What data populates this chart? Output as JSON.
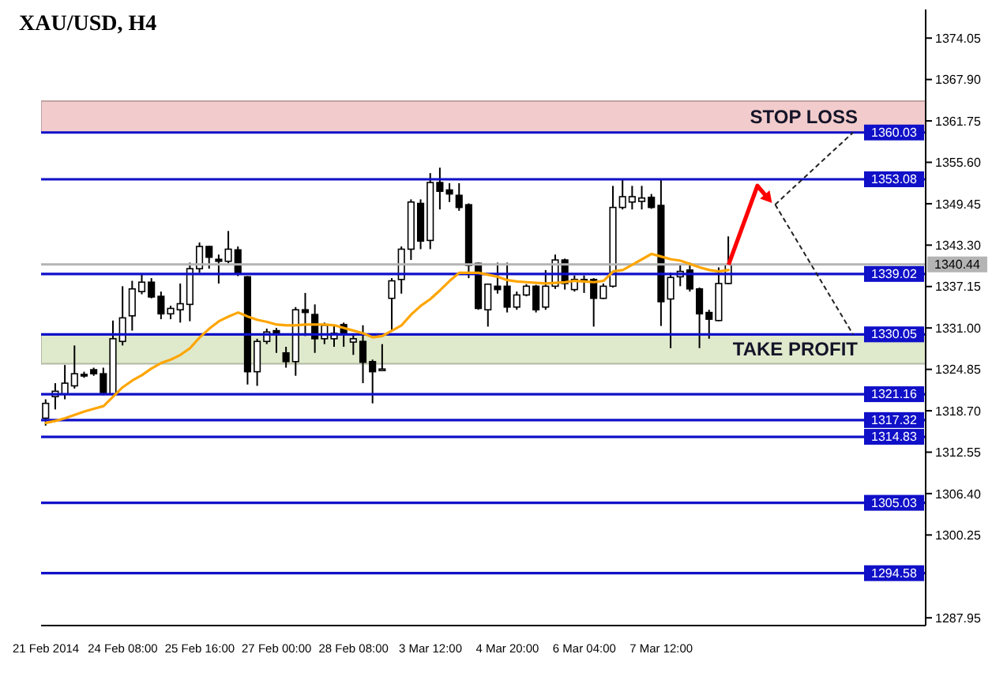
{
  "chart_data": {
    "type": "candlestick",
    "title": "XAU/USD, H4",
    "categories": [
      "21 Feb 2014",
      null,
      null,
      null,
      null,
      null,
      null,
      null,
      "24 Feb 08:00",
      null,
      null,
      null,
      null,
      null,
      null,
      null,
      "25 Feb 16:00",
      null,
      null,
      null,
      null,
      null,
      null,
      null,
      "27 Feb 00:00",
      null,
      null,
      null,
      null,
      null,
      null,
      null,
      "28 Feb 08:00",
      null,
      null,
      null,
      null,
      null,
      null,
      null,
      "3 Mar 12:00",
      null,
      null,
      null,
      null,
      null,
      null,
      null,
      "4 Mar 20:00",
      null,
      null,
      null,
      null,
      null,
      null,
      null,
      "6 Mar 04:00",
      null,
      null,
      null,
      null,
      null,
      null,
      null,
      "7 Mar 12:00",
      null,
      null,
      null,
      null,
      null,
      null,
      null,
      null,
      null,
      null,
      null,
      null,
      null,
      null,
      null,
      null,
      null,
      null,
      null,
      null,
      null,
      null,
      null,
      null,
      null,
      null,
      null
    ],
    "ohlc": [
      [
        1317.6,
        1320.4,
        1316.5,
        1319.8
      ],
      [
        1320.8,
        1322.8,
        1318.9,
        1321.6
      ],
      [
        1321.2,
        1325.5,
        1320.4,
        1322.8
      ],
      [
        1322.4,
        1328.4,
        1322.0,
        1324.2
      ],
      [
        1324.1,
        1324.5,
        1323.6,
        1323.9
      ],
      [
        1324.8,
        1325.1,
        1323.9,
        1324.2
      ],
      [
        1324.2,
        1325.1,
        1321.0,
        1321.4
      ],
      [
        1321.2,
        1332.1,
        1321.0,
        1329.4
      ],
      [
        1329.0,
        1337.2,
        1328.4,
        1332.5
      ],
      [
        1332.8,
        1338.0,
        1330.6,
        1336.8
      ],
      [
        1336.4,
        1339.0,
        1336.0,
        1337.8
      ],
      [
        1337.8,
        1338.4,
        1335.4,
        1335.6
      ],
      [
        1335.7,
        1336.4,
        1332.3,
        1333.1
      ],
      [
        1333.1,
        1334.3,
        1332.3,
        1333.9
      ],
      [
        1333.7,
        1337.6,
        1331.8,
        1334.6
      ],
      [
        1334.5,
        1340.7,
        1332.0,
        1339.8
      ],
      [
        1339.8,
        1343.7,
        1339.2,
        1343.1
      ],
      [
        1343.1,
        1343.2,
        1339.8,
        1341.5
      ],
      [
        1341.2,
        1341.9,
        1337.6,
        1340.9
      ],
      [
        1340.9,
        1345.4,
        1340.6,
        1342.7
      ],
      [
        1342.6,
        1343.1,
        1338.7,
        1339.2
      ],
      [
        1338.6,
        1338.7,
        1322.6,
        1324.5
      ],
      [
        1324.5,
        1329.4,
        1322.4,
        1329.0
      ],
      [
        1329.0,
        1330.9,
        1328.6,
        1330.4
      ],
      [
        1330.6,
        1331.0,
        1327.3,
        1330.1
      ],
      [
        1327.3,
        1328.2,
        1325.1,
        1326.0
      ],
      [
        1326.0,
        1334.1,
        1323.9,
        1333.7
      ],
      [
        1333.7,
        1336.2,
        1329.8,
        1333.3
      ],
      [
        1333.0,
        1334.5,
        1327.3,
        1329.4
      ],
      [
        1329.4,
        1331.8,
        1328.6,
        1331.4
      ],
      [
        1329.4,
        1331.4,
        1328.2,
        1330.2
      ],
      [
        1331.5,
        1331.8,
        1328.2,
        1330.2
      ],
      [
        1328.9,
        1330.2,
        1327.0,
        1329.4
      ],
      [
        1329.0,
        1331.4,
        1322.8,
        1325.9
      ],
      [
        1326.0,
        1326.3,
        1319.8,
        1324.5
      ],
      [
        1324.7,
        1328.6,
        1324.6,
        1324.9
      ],
      [
        1335.4,
        1338.4,
        1330.6,
        1338.0
      ],
      [
        1338.2,
        1343.1,
        1336.1,
        1342.7
      ],
      [
        1342.7,
        1350.1,
        1341.1,
        1349.7
      ],
      [
        1349.5,
        1350.1,
        1342.7,
        1343.9
      ],
      [
        1344.0,
        1354.0,
        1342.7,
        1352.6
      ],
      [
        1352.6,
        1354.8,
        1348.6,
        1351.3
      ],
      [
        1351.5,
        1352.5,
        1349.7,
        1350.9
      ],
      [
        1350.7,
        1352.5,
        1348.4,
        1348.9
      ],
      [
        1349.3,
        1349.5,
        1338.4,
        1340.3
      ],
      [
        1340.6,
        1340.7,
        1333.7,
        1333.9
      ],
      [
        1333.7,
        1337.6,
        1331.2,
        1337.5
      ],
      [
        1337.2,
        1340.7,
        1336.1,
        1336.7
      ],
      [
        1337.2,
        1340.7,
        1333.3,
        1334.1
      ],
      [
        1334.1,
        1336.4,
        1333.7,
        1335.9
      ],
      [
        1335.9,
        1337.5,
        1335.7,
        1337.2
      ],
      [
        1337.2,
        1337.4,
        1333.3,
        1333.7
      ],
      [
        1334.1,
        1339.6,
        1333.7,
        1337.2
      ],
      [
        1337.2,
        1341.9,
        1336.8,
        1341.1
      ],
      [
        1341.1,
        1341.3,
        1336.7,
        1337.6
      ],
      [
        1336.7,
        1338.8,
        1336.4,
        1338.2
      ],
      [
        1338.2,
        1338.8,
        1336.2,
        1337.9
      ],
      [
        1338.2,
        1338.4,
        1331.2,
        1335.4
      ],
      [
        1335.4,
        1337.6,
        1335.3,
        1337.2
      ],
      [
        1337.2,
        1352.1,
        1337.0,
        1348.9
      ],
      [
        1348.9,
        1353.2,
        1348.6,
        1350.5
      ],
      [
        1349.7,
        1352.1,
        1348.6,
        1350.5
      ],
      [
        1349.8,
        1352.1,
        1348.6,
        1350.3
      ],
      [
        1350.4,
        1350.9,
        1348.7,
        1348.9
      ],
      [
        1349.2,
        1353.1,
        1331.3,
        1334.9
      ],
      [
        1335.3,
        1339.2,
        1328.0,
        1338.5
      ],
      [
        1338.6,
        1340.3,
        1337.2,
        1339.4
      ],
      [
        1339.6,
        1340.7,
        1336.4,
        1336.8
      ],
      [
        1336.8,
        1337.0,
        1328.0,
        1333.1
      ],
      [
        1333.3,
        1333.7,
        1329.4,
        1332.3
      ],
      [
        1332.1,
        1340.0,
        1332.0,
        1337.6
      ],
      [
        1337.6,
        1344.6,
        1337.5,
        1340.4
      ],
      null,
      null,
      null,
      null,
      null,
      null,
      null,
      null,
      null,
      null,
      null,
      null,
      null,
      null,
      null,
      null,
      null,
      null,
      null,
      null
    ],
    "series": [
      {
        "type": "line",
        "color": "#ffa500",
        "values": [
          1316.9,
          1317.2,
          1317.6,
          1318.1,
          1318.6,
          1319.0,
          1319.4,
          1320.8,
          1322.2,
          1323.2,
          1324.0,
          1325.0,
          1325.8,
          1326.3,
          1327.0,
          1328.0,
          1329.6,
          1330.9,
          1332.0,
          1332.7,
          1333.3,
          1332.7,
          1332.2,
          1331.9,
          1331.5,
          1331.4,
          1331.4,
          1331.5,
          1331.5,
          1331.5,
          1331.4,
          1331.0,
          1330.6,
          1330.2,
          1329.6,
          1329.8,
          1330.6,
          1331.4,
          1333.0,
          1334.3,
          1335.3,
          1336.6,
          1338.0,
          1339.2,
          1339.2,
          1339.2,
          1338.9,
          1338.6,
          1338.1,
          1337.9,
          1337.8,
          1337.7,
          1337.6,
          1337.7,
          1337.8,
          1338.0,
          1337.9,
          1337.8,
          1338.0,
          1339.4,
          1339.6,
          1340.4,
          1341.2,
          1342.0,
          1341.6,
          1341.2,
          1341.0,
          1340.5,
          1340.0,
          1339.6,
          1339.4,
          1339.6,
          null,
          null,
          null,
          null,
          null,
          null,
          null,
          null,
          null,
          null,
          null,
          null,
          null,
          null,
          null,
          null,
          null,
          null,
          null,
          null
        ]
      }
    ],
    "ylim": [
      1286.8,
      1378.3
    ],
    "yticks": [
      1287.95,
      1300.25,
      {
        "value": 1306.4,
        "label": "1306.40"
      },
      1312.55,
      {
        "value": 1318.7,
        "label": "1318.70"
      },
      1324.85,
      {
        "value": 1331,
        "label": "1331.00"
      },
      1337.15,
      {
        "value": 1343.3,
        "label": "1343.30"
      },
      1349.45,
      {
        "value": 1355.6,
        "label": "1355.60"
      },
      1361.75,
      {
        "value": 1367.9,
        "label": "1367.90"
      },
      1374.05
    ],
    "ref_lines": [
      {
        "axis": "y",
        "value": 1360.03,
        "label": "1360.03",
        "color": "#1010c8"
      },
      {
        "axis": "y",
        "value": 1353.08,
        "label": "1353.08",
        "color": "#1010c8"
      },
      {
        "axis": "y",
        "value": 1339.02,
        "label": "1339.02",
        "color": "#1010c8"
      },
      {
        "axis": "y",
        "value": 1330.05,
        "label": "1330.05",
        "color": "#1010c8"
      },
      {
        "axis": "y",
        "value": 1321.16,
        "label": "1321.16",
        "color": "#1010c8"
      },
      {
        "axis": "y",
        "value": 1317.32,
        "label": "1317.32",
        "color": "#1010c8"
      },
      {
        "axis": "y",
        "value": 1314.83,
        "label": "1314.83",
        "color": "#1010c8"
      },
      {
        "axis": "y",
        "value": 1305.03,
        "label": "1305.03",
        "color": "#1010c8"
      },
      {
        "axis": "y",
        "value": 1294.58,
        "label": "1294.58",
        "color": "#1010c8"
      },
      {
        "axis": "y",
        "value": 1340.44,
        "label": "1340.44",
        "color": "#b4b4b4"
      }
    ],
    "bands": [
      {
        "axis": "y",
        "from": 1360.03,
        "to": 1364.7,
        "label": "STOP LOSS",
        "color": "#f2cccc"
      },
      {
        "axis": "y",
        "from": 1325.7,
        "to": 1330.05,
        "label": "TAKE PROFIT",
        "color": "#dfe9cc"
      }
    ]
  }
}
